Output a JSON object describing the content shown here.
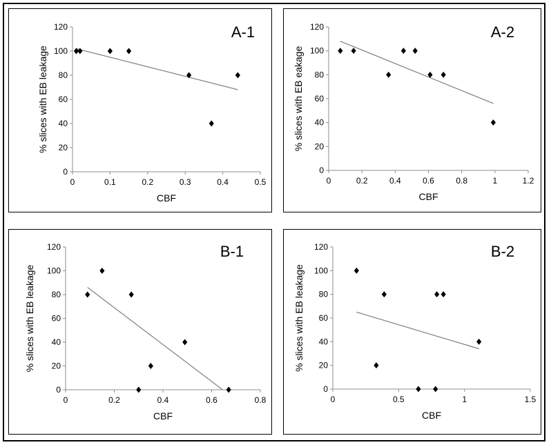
{
  "charts": [
    {
      "label": "A-1",
      "xlabel": "CBF",
      "ylabel": "% slices with EB leakage",
      "xlim": [
        0,
        0.5
      ],
      "ylim": [
        0,
        120
      ],
      "xticks": [
        "0",
        "0.1",
        "0.2",
        "0.3",
        "0.4",
        "0.5"
      ],
      "yticks": [
        "0",
        "20",
        "40",
        "60",
        "80",
        "100",
        "120"
      ]
    },
    {
      "label": "A-2",
      "xlabel": "CBF",
      "ylabel": "% slices with EB eakage",
      "xlim": [
        0,
        1.2
      ],
      "ylim": [
        0,
        120
      ],
      "xticks": [
        "0",
        "0.2",
        "0.4",
        "0.6",
        "0.8",
        "1",
        "1.2"
      ],
      "yticks": [
        "0",
        "20",
        "40",
        "60",
        "80",
        "100",
        "120"
      ]
    },
    {
      "label": "B-1",
      "xlabel": "CBF",
      "ylabel": "% slices with EB leakage",
      "xlim": [
        0,
        0.8
      ],
      "ylim": [
        0,
        120
      ],
      "xticks": [
        "0",
        "0.2",
        "0.4",
        "0.6",
        "0.8"
      ],
      "yticks": [
        "0",
        "20",
        "40",
        "60",
        "80",
        "100",
        "120"
      ]
    },
    {
      "label": "B-2",
      "xlabel": "CBF",
      "ylabel": "% slices with EB leakage",
      "xlim": [
        0,
        1.5
      ],
      "ylim": [
        0,
        120
      ],
      "xticks": [
        "0",
        "0.5",
        "1",
        "1.5"
      ],
      "yticks": [
        "0",
        "20",
        "40",
        "60",
        "80",
        "100",
        "120"
      ]
    }
  ],
  "chart_data": [
    {
      "type": "scatter",
      "title": "A-1",
      "xlabel": "CBF",
      "ylabel": "% slices with EB leakage",
      "xlim": [
        0,
        0.5
      ],
      "ylim": [
        0,
        120
      ],
      "grid": false,
      "points": [
        [
          0.01,
          100
        ],
        [
          0.02,
          100
        ],
        [
          0.1,
          100
        ],
        [
          0.15,
          100
        ],
        [
          0.31,
          80
        ],
        [
          0.37,
          40
        ],
        [
          0.44,
          80
        ]
      ],
      "trendline": [
        [
          0.01,
          102
        ],
        [
          0.44,
          68
        ]
      ],
      "marker_color": "#000000",
      "trendline_color": "#7f7f7f"
    },
    {
      "type": "scatter",
      "title": "A-2",
      "xlabel": "CBF",
      "ylabel": "% slices with EB eakage",
      "xlim": [
        0,
        1.2
      ],
      "ylim": [
        0,
        120
      ],
      "grid": false,
      "points": [
        [
          0.07,
          100
        ],
        [
          0.15,
          100
        ],
        [
          0.36,
          80
        ],
        [
          0.45,
          100
        ],
        [
          0.52,
          100
        ],
        [
          0.61,
          80
        ],
        [
          0.69,
          80
        ],
        [
          0.99,
          40
        ]
      ],
      "trendline": [
        [
          0.07,
          108
        ],
        [
          0.99,
          56
        ]
      ],
      "marker_color": "#000000",
      "trendline_color": "#7f7f7f"
    },
    {
      "type": "scatter",
      "title": "B-1",
      "xlabel": "CBF",
      "ylabel": "% slices with EB leakage",
      "xlim": [
        0,
        0.8
      ],
      "ylim": [
        0,
        120
      ],
      "grid": false,
      "points": [
        [
          0.09,
          80
        ],
        [
          0.15,
          100
        ],
        [
          0.27,
          80
        ],
        [
          0.3,
          0
        ],
        [
          0.35,
          20
        ],
        [
          0.49,
          40
        ],
        [
          0.67,
          0
        ]
      ],
      "trendline": [
        [
          0.09,
          86
        ],
        [
          0.645,
          0
        ]
      ],
      "marker_color": "#000000",
      "trendline_color": "#7f7f7f"
    },
    {
      "type": "scatter",
      "title": "B-2",
      "xlabel": "CBF",
      "ylabel": "% slices with EB leakage",
      "xlim": [
        0,
        1.5
      ],
      "ylim": [
        0,
        120
      ],
      "grid": false,
      "points": [
        [
          0.18,
          100
        ],
        [
          0.33,
          20
        ],
        [
          0.39,
          80
        ],
        [
          0.65,
          0
        ],
        [
          0.78,
          0
        ],
        [
          0.79,
          80
        ],
        [
          0.84,
          80
        ],
        [
          1.11,
          40
        ]
      ],
      "trendline": [
        [
          0.18,
          65
        ],
        [
          1.11,
          34
        ]
      ],
      "marker_color": "#000000",
      "trendline_color": "#7f7f7f"
    }
  ]
}
